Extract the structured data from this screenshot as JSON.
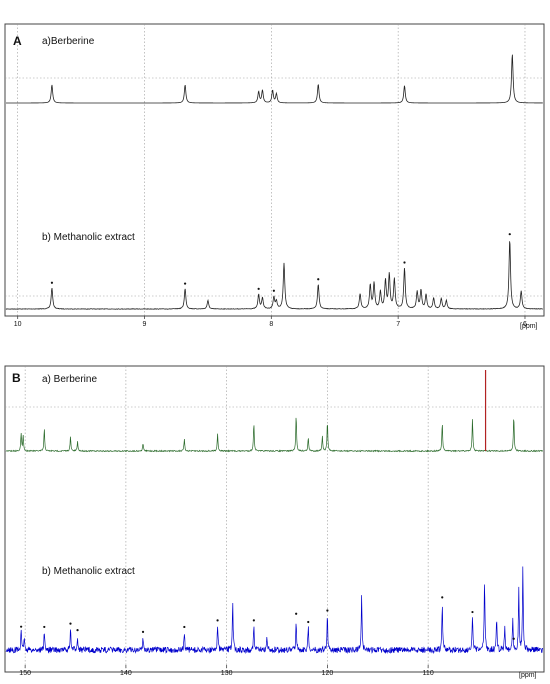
{
  "chart_data": [
    {
      "panel_label": "A",
      "type": "line",
      "x_unit_label": "[ppm]",
      "xlim": [
        10.1,
        5.85
      ],
      "ticks": [
        10,
        9,
        8,
        7,
        6
      ],
      "grid": true,
      "series": [
        {
          "name": "a)Berberine",
          "peaks": [
            {
              "x": 9.73,
              "h": 0.26
            },
            {
              "x": 8.68,
              "h": 0.26
            },
            {
              "x": 8.1,
              "h": 0.16
            },
            {
              "x": 8.07,
              "h": 0.18
            },
            {
              "x": 7.99,
              "h": 0.18
            },
            {
              "x": 7.96,
              "h": 0.13
            },
            {
              "x": 7.63,
              "h": 0.27
            },
            {
              "x": 6.95,
              "h": 0.25
            },
            {
              "x": 6.1,
              "h": 0.7
            }
          ]
        },
        {
          "name": "b) Methanolic extract",
          "marked_peaks": [
            9.73,
            8.68,
            8.1,
            7.98,
            7.63,
            6.95,
            6.12
          ],
          "peaks": [
            {
              "x": 9.73,
              "h": 0.25
            },
            {
              "x": 8.68,
              "h": 0.24
            },
            {
              "x": 8.5,
              "h": 0.1
            },
            {
              "x": 8.1,
              "h": 0.17
            },
            {
              "x": 8.07,
              "h": 0.13
            },
            {
              "x": 7.98,
              "h": 0.14
            },
            {
              "x": 7.96,
              "h": 0.09
            },
            {
              "x": 7.9,
              "h": 0.54
            },
            {
              "x": 7.63,
              "h": 0.29
            },
            {
              "x": 7.3,
              "h": 0.18
            },
            {
              "x": 7.22,
              "h": 0.28
            },
            {
              "x": 7.19,
              "h": 0.3
            },
            {
              "x": 7.14,
              "h": 0.2
            },
            {
              "x": 7.1,
              "h": 0.33
            },
            {
              "x": 7.07,
              "h": 0.4
            },
            {
              "x": 7.03,
              "h": 0.35
            },
            {
              "x": 6.95,
              "h": 0.48
            },
            {
              "x": 6.85,
              "h": 0.2
            },
            {
              "x": 6.82,
              "h": 0.22
            },
            {
              "x": 6.78,
              "h": 0.17
            },
            {
              "x": 6.72,
              "h": 0.13
            },
            {
              "x": 6.66,
              "h": 0.12
            },
            {
              "x": 6.62,
              "h": 0.1
            },
            {
              "x": 6.12,
              "h": 0.82
            },
            {
              "x": 6.03,
              "h": 0.21
            }
          ]
        }
      ]
    },
    {
      "panel_label": "B",
      "type": "line",
      "x_unit_label": "[ppm]",
      "xlim": [
        152,
        98.5
      ],
      "ticks": [
        150,
        140,
        130,
        120,
        110
      ],
      "grid": true,
      "series": [
        {
          "name": "a) Berberine",
          "color": "#2a6a2a",
          "peaks": [
            {
              "x": 150.4,
              "h": 0.22
            },
            {
              "x": 150.2,
              "h": 0.2
            },
            {
              "x": 148.1,
              "h": 0.28
            },
            {
              "x": 145.5,
              "h": 0.18
            },
            {
              "x": 144.8,
              "h": 0.12
            },
            {
              "x": 138.3,
              "h": 0.1
            },
            {
              "x": 134.2,
              "h": 0.15
            },
            {
              "x": 130.9,
              "h": 0.22
            },
            {
              "x": 127.3,
              "h": 0.36
            },
            {
              "x": 123.1,
              "h": 0.46
            },
            {
              "x": 121.9,
              "h": 0.17
            },
            {
              "x": 120.5,
              "h": 0.18
            },
            {
              "x": 120.0,
              "h": 0.38
            },
            {
              "x": 108.6,
              "h": 0.36
            },
            {
              "x": 105.6,
              "h": 0.4
            },
            {
              "x": 101.5,
              "h": 0.46
            }
          ],
          "highlight_peak": {
            "x": 104.3,
            "h": 1.0,
            "color": "#b22222"
          }
        },
        {
          "name": "b) Methanolic extract",
          "color": "#0000cc",
          "marked_peaks": [
            150.4,
            148.1,
            145.5,
            144.8,
            138.3,
            134.2,
            130.9,
            127.3,
            123.1,
            121.9,
            120.0,
            108.6,
            105.6,
            101.5
          ],
          "peaks": [
            {
              "x": 150.4,
              "h": 0.22
            },
            {
              "x": 150.1,
              "h": 0.16
            },
            {
              "x": 148.1,
              "h": 0.22
            },
            {
              "x": 145.5,
              "h": 0.26
            },
            {
              "x": 144.8,
              "h": 0.18
            },
            {
              "x": 138.3,
              "h": 0.16
            },
            {
              "x": 134.2,
              "h": 0.22
            },
            {
              "x": 130.9,
              "h": 0.3
            },
            {
              "x": 129.4,
              "h": 0.62
            },
            {
              "x": 127.3,
              "h": 0.3
            },
            {
              "x": 126.0,
              "h": 0.18
            },
            {
              "x": 123.1,
              "h": 0.38
            },
            {
              "x": 121.9,
              "h": 0.28
            },
            {
              "x": 120.0,
              "h": 0.42
            },
            {
              "x": 116.6,
              "h": 0.7
            },
            {
              "x": 108.6,
              "h": 0.58
            },
            {
              "x": 105.6,
              "h": 0.4
            },
            {
              "x": 104.4,
              "h": 0.86
            },
            {
              "x": 103.2,
              "h": 0.4
            },
            {
              "x": 102.4,
              "h": 0.3
            },
            {
              "x": 101.6,
              "h": 0.4
            },
            {
              "x": 101.0,
              "h": 0.76
            },
            {
              "x": 100.6,
              "h": 1.0
            }
          ]
        }
      ]
    }
  ]
}
